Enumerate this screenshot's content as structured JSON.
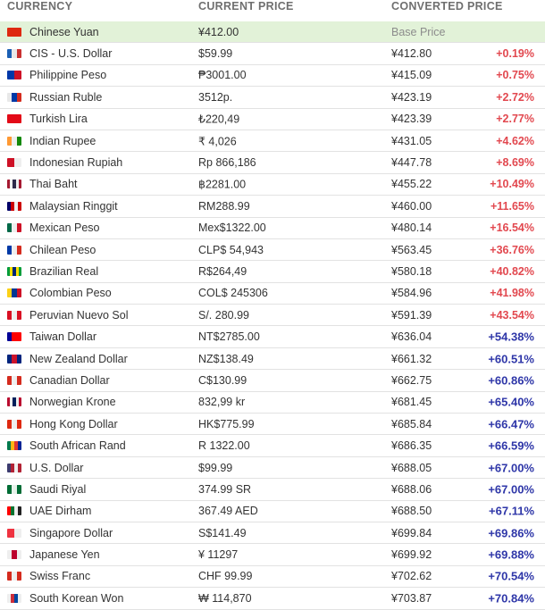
{
  "header": {
    "currency": "CURRENCY",
    "current_price": "CURRENT PRICE",
    "converted_price": "CONVERTED PRICE"
  },
  "rows": [
    {
      "name": "Chinese Yuan",
      "price": "¥412.00",
      "converted": "Base Price",
      "change": "",
      "base": true,
      "flag": [
        "#de2910",
        "#de2910"
      ]
    },
    {
      "name": "CIS - U.S. Dollar",
      "price": "$59.99",
      "converted": "¥412.80",
      "change": "+0.19%",
      "flag": [
        "#1a5fb4",
        "#e9e9e9",
        "#c93030"
      ]
    },
    {
      "name": "Philippine Peso",
      "price": "₱3001.00",
      "converted": "¥415.09",
      "change": "+0.75%",
      "flag": [
        "#0038a8",
        "#ce1126"
      ]
    },
    {
      "name": "Russian Ruble",
      "price": "3512р.",
      "converted": "¥423.19",
      "change": "+2.72%",
      "flag": [
        "#e8e8e8",
        "#0039a6",
        "#d52b1e"
      ]
    },
    {
      "name": "Turkish Lira",
      "price": "₺220,49",
      "converted": "¥423.39",
      "change": "+2.77%",
      "flag": [
        "#e30a17",
        "#e30a17"
      ]
    },
    {
      "name": "Indian Rupee",
      "price": "₹ 4,026",
      "converted": "¥431.05",
      "change": "+4.62%",
      "flag": [
        "#ff9933",
        "#eeeeee",
        "#138808"
      ]
    },
    {
      "name": "Indonesian Rupiah",
      "price": "Rp 866,186",
      "converted": "¥447.78",
      "change": "+8.69%",
      "flag": [
        "#ce1126",
        "#eeeeee"
      ]
    },
    {
      "name": "Thai Baht",
      "price": "฿2281.00",
      "converted": "¥455.22",
      "change": "+10.49%",
      "flag": [
        "#a51931",
        "#eeeeee",
        "#2d2a4a",
        "#eeeeee",
        "#a51931"
      ]
    },
    {
      "name": "Malaysian Ringgit",
      "price": "RM288.99",
      "converted": "¥460.00",
      "change": "+11.65%",
      "flag": [
        "#010066",
        "#cc0001",
        "#eeeeee",
        "#cc0001"
      ]
    },
    {
      "name": "Mexican Peso",
      "price": "Mex$1322.00",
      "converted": "¥480.14",
      "change": "+16.54%",
      "flag": [
        "#006847",
        "#eeeeee",
        "#ce1126"
      ]
    },
    {
      "name": "Chilean Peso",
      "price": "CLP$ 54,943",
      "converted": "¥563.45",
      "change": "+36.76%",
      "flag": [
        "#0039a6",
        "#eeeeee",
        "#d52b1e"
      ]
    },
    {
      "name": "Brazilian Real",
      "price": "R$264,49",
      "converted": "¥580.18",
      "change": "+40.82%",
      "flag": [
        "#009c3b",
        "#ffdf00",
        "#002776",
        "#ffdf00",
        "#009c3b"
      ]
    },
    {
      "name": "Colombian Peso",
      "price": "COL$ 245306",
      "converted": "¥584.96",
      "change": "+41.98%",
      "flag": [
        "#fcd116",
        "#003893",
        "#ce1126"
      ]
    },
    {
      "name": "Peruvian Nuevo Sol",
      "price": "S/. 280.99",
      "converted": "¥591.39",
      "change": "+43.54%",
      "flag": [
        "#d91023",
        "#eeeeee",
        "#d91023"
      ]
    },
    {
      "name": "Taiwan Dollar",
      "price": "NT$2785.00",
      "converted": "¥636.04",
      "change": "+54.38%",
      "flag": [
        "#000095",
        "#fe0000",
        "#fe0000"
      ]
    },
    {
      "name": "New Zealand Dollar",
      "price": "NZ$138.49",
      "converted": "¥661.32",
      "change": "+60.51%",
      "flag": [
        "#00247d",
        "#cc142b",
        "#00247d"
      ]
    },
    {
      "name": "Canadian Dollar",
      "price": "C$130.99",
      "converted": "¥662.75",
      "change": "+60.86%",
      "flag": [
        "#d52b1e",
        "#eeeeee",
        "#d52b1e"
      ]
    },
    {
      "name": "Norwegian Krone",
      "price": "832,99 kr",
      "converted": "¥681.45",
      "change": "+65.40%",
      "flag": [
        "#ba0c2f",
        "#eeeeee",
        "#00205b",
        "#eeeeee",
        "#ba0c2f"
      ]
    },
    {
      "name": "Hong Kong Dollar",
      "price": "HK$775.99",
      "converted": "¥685.84",
      "change": "+66.47%",
      "flag": [
        "#de2910",
        "#eeeeee",
        "#de2910"
      ]
    },
    {
      "name": "South African Rand",
      "price": "R 1322.00",
      "converted": "¥686.35",
      "change": "+66.59%",
      "flag": [
        "#007a4d",
        "#ffb612",
        "#de3831",
        "#002395"
      ]
    },
    {
      "name": "U.S. Dollar",
      "price": "$99.99",
      "converted": "¥688.05",
      "change": "+67.00%",
      "flag": [
        "#3c3b6e",
        "#b22234",
        "#eeeeee",
        "#b22234"
      ]
    },
    {
      "name": "Saudi Riyal",
      "price": "374.99 SR",
      "converted": "¥688.06",
      "change": "+67.00%",
      "flag": [
        "#006c35",
        "#e6f2ea",
        "#006c35"
      ]
    },
    {
      "name": "UAE Dirham",
      "price": "367.49 AED",
      "converted": "¥688.50",
      "change": "+67.11%",
      "flag": [
        "#ff0000",
        "#00732f",
        "#eeeeee",
        "#222222"
      ]
    },
    {
      "name": "Singapore Dollar",
      "price": "S$141.49",
      "converted": "¥699.84",
      "change": "+69.86%",
      "flag": [
        "#ef3340",
        "#eeeeee"
      ]
    },
    {
      "name": "Japanese Yen",
      "price": "¥ 11297",
      "converted": "¥699.92",
      "change": "+69.88%",
      "flag": [
        "#eeeeee",
        "#bc002d",
        "#eeeeee"
      ]
    },
    {
      "name": "Swiss Franc",
      "price": "CHF 99.99",
      "converted": "¥702.62",
      "change": "+70.54%",
      "flag": [
        "#d52b1e",
        "#eeeeee",
        "#d52b1e"
      ]
    },
    {
      "name": "South Korean Won",
      "price": "₩ 114,870",
      "converted": "¥703.87",
      "change": "+70.84%",
      "flag": [
        "#eeeeee",
        "#cd2e3a",
        "#0047a0",
        "#eeeeee"
      ]
    }
  ],
  "colors": {
    "base_row_bg": "#e2f2d8",
    "low_change": "#e2484f",
    "high_change": "#2e36a8",
    "header_text": "#6f6f6f"
  }
}
